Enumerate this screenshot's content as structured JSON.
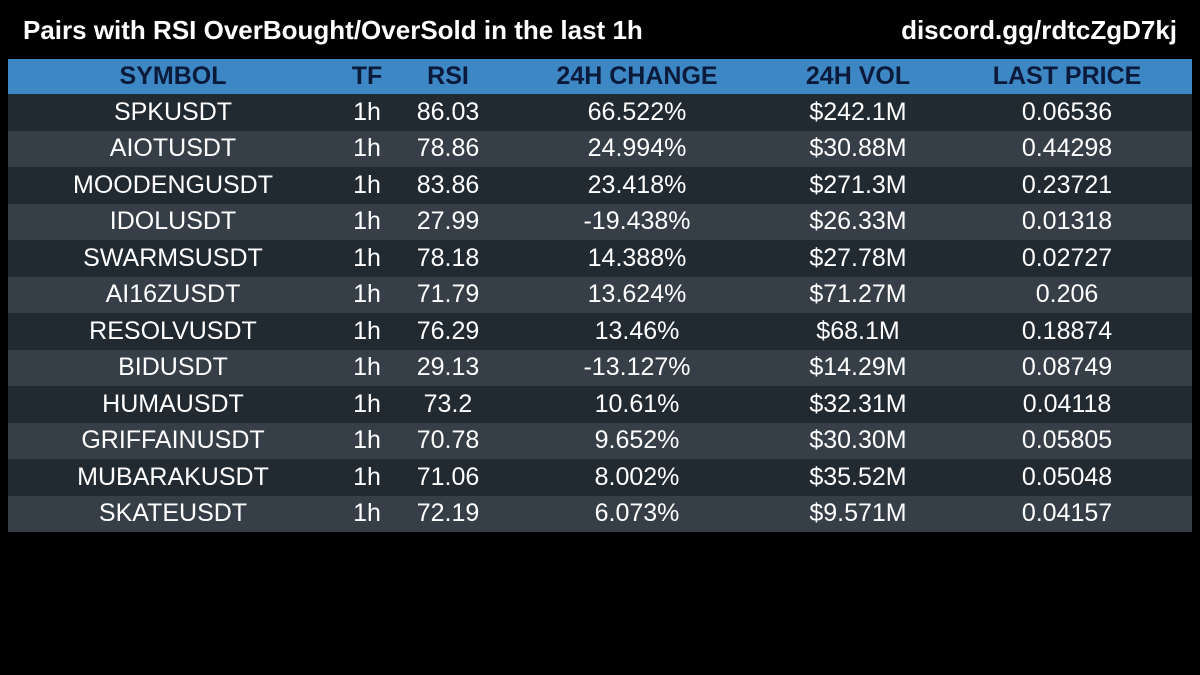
{
  "header": {
    "title": "Pairs with RSI OverBought/OverSold in the last 1h",
    "link": "discord.gg/rdtcZgD7kj"
  },
  "table": {
    "columns": [
      "SYMBOL",
      "TF",
      "RSI",
      "24H CHANGE",
      "24H VOL",
      "LAST PRICE"
    ],
    "rows": [
      {
        "symbol": "SPKUSDT",
        "tf": "1h",
        "rsi": "86.03",
        "change": "66.522%",
        "vol": "$242.1M",
        "price": "0.06536"
      },
      {
        "symbol": "AIOTUSDT",
        "tf": "1h",
        "rsi": "78.86",
        "change": "24.994%",
        "vol": "$30.88M",
        "price": "0.44298"
      },
      {
        "symbol": "MOODENGUSDT",
        "tf": "1h",
        "rsi": "83.86",
        "change": "23.418%",
        "vol": "$271.3M",
        "price": "0.23721"
      },
      {
        "symbol": "IDOLUSDT",
        "tf": "1h",
        "rsi": "27.99",
        "change": "-19.438%",
        "vol": "$26.33M",
        "price": "0.01318"
      },
      {
        "symbol": "SWARMSUSDT",
        "tf": "1h",
        "rsi": "78.18",
        "change": "14.388%",
        "vol": "$27.78M",
        "price": "0.02727"
      },
      {
        "symbol": "AI16ZUSDT",
        "tf": "1h",
        "rsi": "71.79",
        "change": "13.624%",
        "vol": "$71.27M",
        "price": "0.206"
      },
      {
        "symbol": "RESOLVUSDT",
        "tf": "1h",
        "rsi": "76.29",
        "change": "13.46%",
        "vol": "$68.1M",
        "price": "0.18874"
      },
      {
        "symbol": "BIDUSDT",
        "tf": "1h",
        "rsi": "29.13",
        "change": "-13.127%",
        "vol": "$14.29M",
        "price": "0.08749"
      },
      {
        "symbol": "HUMAUSDT",
        "tf": "1h",
        "rsi": "73.2",
        "change": "10.61%",
        "vol": "$32.31M",
        "price": "0.04118"
      },
      {
        "symbol": "GRIFFAINUSDT",
        "tf": "1h",
        "rsi": "70.78",
        "change": "9.652%",
        "vol": "$30.30M",
        "price": "0.05805"
      },
      {
        "symbol": "MUBARAKUSDT",
        "tf": "1h",
        "rsi": "71.06",
        "change": "8.002%",
        "vol": "$35.52M",
        "price": "0.05048"
      },
      {
        "symbol": "SKATEUSDT",
        "tf": "1h",
        "rsi": "72.19",
        "change": "6.073%",
        "vol": "$9.571M",
        "price": "0.04157"
      }
    ]
  },
  "colors": {
    "background": "#000000",
    "header_row": "#3d87c4",
    "header_text": "#0b1a3a",
    "row_dark": "#212a30",
    "row_light": "#363f47",
    "text": "#ffffff"
  }
}
